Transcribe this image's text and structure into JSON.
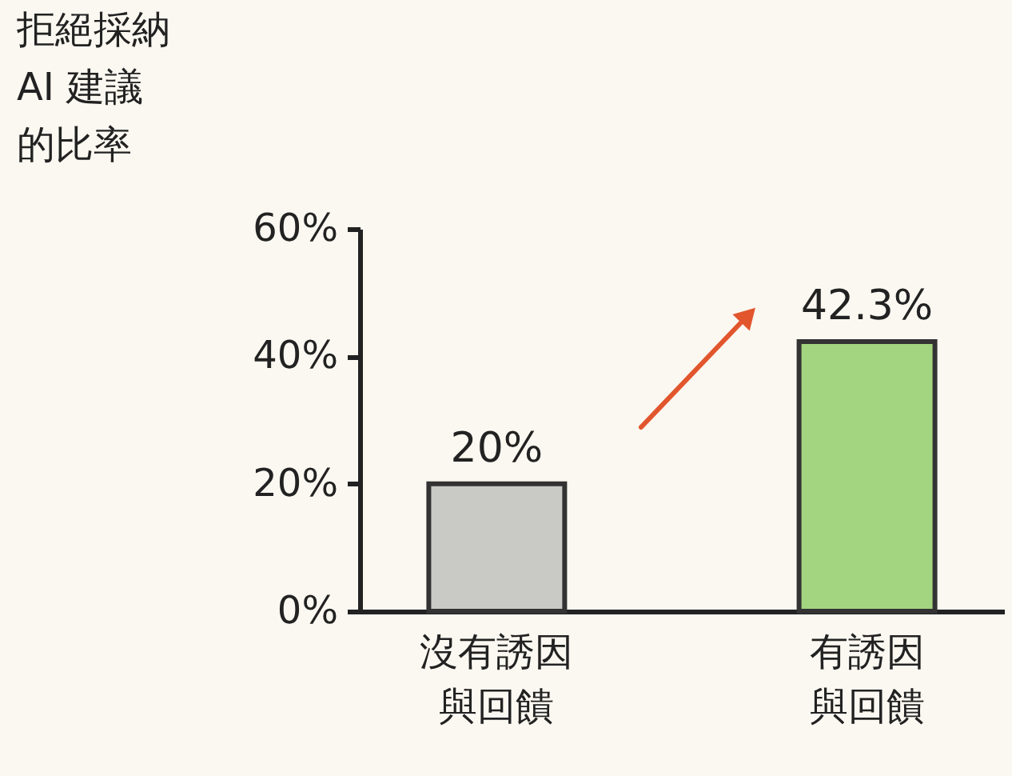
{
  "chart_data": {
    "type": "bar",
    "ylabel": "拒絕採納AI 建議的比率",
    "categories": [
      "沒有誘因與回饋",
      "有誘因與回饋"
    ],
    "values": [
      20,
      42.3
    ],
    "colors": [
      "#c9c9c6",
      "#a3d47f"
    ],
    "ylim": [
      0,
      60
    ],
    "yticks": [
      {
        "value": 0,
        "label": "0%"
      },
      {
        "value": 20,
        "label": "20%"
      },
      {
        "value": 40,
        "label": "40%"
      },
      {
        "value": 60,
        "label": "60%"
      }
    ],
    "value_labels": [
      "20%",
      "42.3%"
    ]
  }
}
